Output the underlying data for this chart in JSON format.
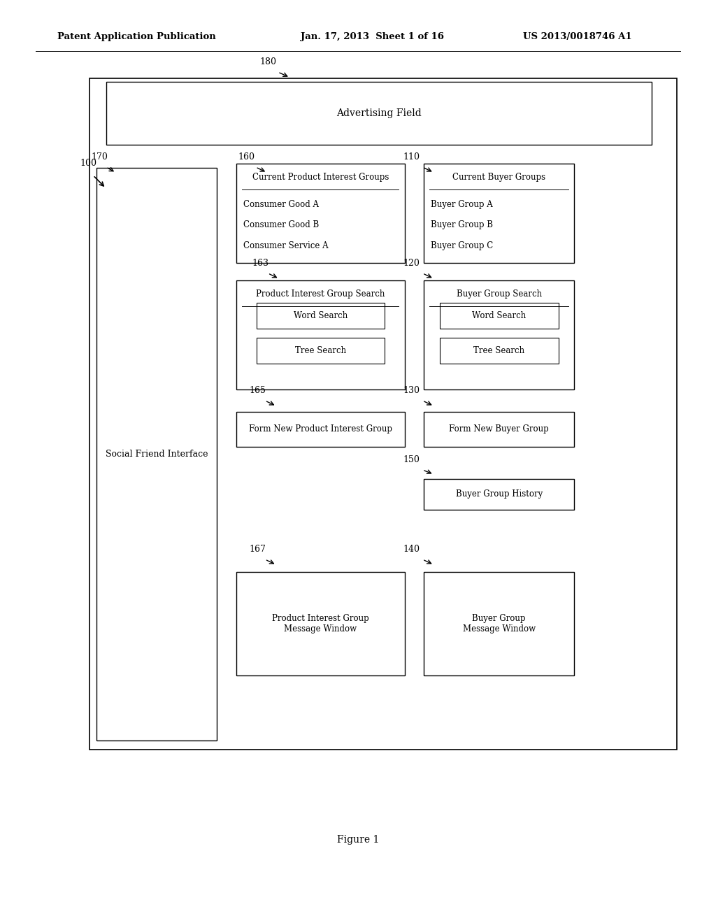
{
  "bg_color": "#ffffff",
  "text_color": "#000000",
  "header_text_left": "Patent Application Publication",
  "header_text_mid": "Jan. 17, 2013  Sheet 1 of 16",
  "header_text_right": "US 2013/0018746 A1",
  "figure_label": "Figure 1",
  "label_100": "100",
  "label_180": "180",
  "label_170": "170",
  "label_160": "160",
  "label_110": "110",
  "label_163": "163",
  "label_120": "120",
  "label_165": "165",
  "label_130": "130",
  "label_150": "150",
  "label_167": "167",
  "label_140": "140",
  "adv_field_text": "Advertising Field",
  "social_text": "Social Friend Interface",
  "current_pig_title": "Current Product Interest Groups",
  "current_pig_items": [
    "Consumer Good A",
    "Consumer Good B",
    "Consumer Service A"
  ],
  "current_bg_title": "Current Buyer Groups",
  "current_bg_items": [
    "Buyer Group A",
    "Buyer Group B",
    "Buyer Group C"
  ],
  "pig_search_title": "Product Interest Group Search",
  "pig_search_buttons": [
    "Word Search",
    "Tree Search"
  ],
  "bg_search_title": "Buyer Group Search",
  "bg_search_buttons": [
    "Word Search",
    "Tree Search"
  ],
  "form_pig_text": "Form New Product Interest Group",
  "form_bg_text": "Form New Buyer Group",
  "bgh_text": "Buyer Group History",
  "msg_pig_text": "Product Interest Group\nMessage Window",
  "msg_bg_text": "Buyer Group\nMessage Window"
}
